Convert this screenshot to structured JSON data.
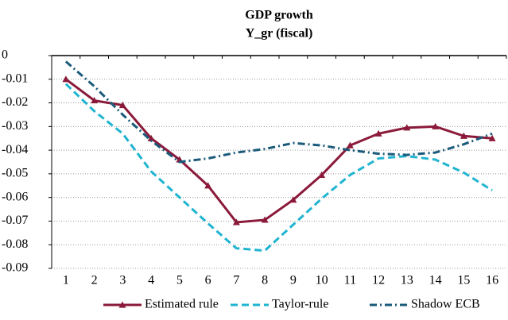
{
  "chart_data": {
    "type": "line",
    "title": "GDP growth",
    "subtitle": "Y_gr (fiscal)",
    "categories": [
      "1",
      "2",
      "3",
      "4",
      "5",
      "6",
      "7",
      "8",
      "9",
      "10",
      "11",
      "12",
      "13",
      "14",
      "15",
      "16"
    ],
    "series": [
      {
        "name": "Estimated rule",
        "color": "#8b1a3a",
        "style": "solid",
        "marker": "triangle",
        "values": [
          -0.01,
          -0.019,
          -0.021,
          -0.035,
          -0.044,
          -0.055,
          -0.0705,
          -0.0695,
          -0.061,
          -0.0505,
          -0.038,
          -0.033,
          -0.0305,
          -0.03,
          -0.034,
          -0.035
        ]
      },
      {
        "name": "Taylor-rule",
        "color": "#1fb4d0",
        "style": "dash",
        "values": [
          -0.012,
          -0.0235,
          -0.033,
          -0.049,
          -0.06,
          -0.071,
          -0.0815,
          -0.0825,
          -0.0715,
          -0.0605,
          -0.0505,
          -0.0435,
          -0.0425,
          -0.044,
          -0.0495,
          -0.057
        ]
      },
      {
        "name": "Shadow ECB",
        "color": "#1a5a7a",
        "style": "dashdot",
        "values": [
          -0.0025,
          -0.013,
          -0.025,
          -0.036,
          -0.045,
          -0.0435,
          -0.041,
          -0.0395,
          -0.037,
          -0.038,
          -0.04,
          -0.0415,
          -0.042,
          -0.041,
          -0.0375,
          -0.033
        ]
      }
    ],
    "ylim": [
      -0.09,
      0
    ],
    "yticks": [
      0,
      -0.01,
      -0.02,
      -0.03,
      -0.04,
      -0.05,
      -0.06,
      -0.07,
      -0.08,
      -0.09
    ],
    "grid": true,
    "legend": "bottom"
  }
}
